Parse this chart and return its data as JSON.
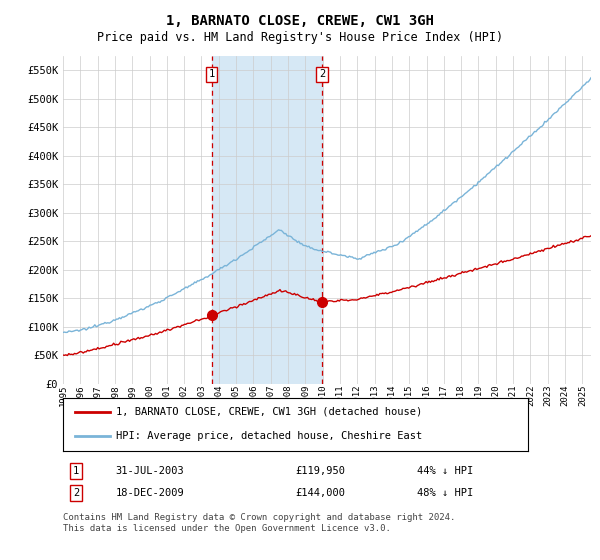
{
  "title": "1, BARNATO CLOSE, CREWE, CW1 3GH",
  "subtitle": "Price paid vs. HM Land Registry's House Price Index (HPI)",
  "ylim": [
    0,
    575000
  ],
  "yticks": [
    0,
    50000,
    100000,
    150000,
    200000,
    250000,
    300000,
    350000,
    400000,
    450000,
    500000,
    550000
  ],
  "ytick_labels": [
    "£0",
    "£50K",
    "£100K",
    "£150K",
    "£200K",
    "£250K",
    "£300K",
    "£350K",
    "£400K",
    "£450K",
    "£500K",
    "£550K"
  ],
  "hpi_color": "#7ab4d8",
  "price_color": "#cc0000",
  "sale1_date": 2003.58,
  "sale1_price": 119950,
  "sale1_label": "1",
  "sale1_text": "31-JUL-2003",
  "sale1_amount": "£119,950",
  "sale1_pct": "44% ↓ HPI",
  "sale2_date": 2009.97,
  "sale2_price": 144000,
  "sale2_label": "2",
  "sale2_text": "18-DEC-2009",
  "sale2_amount": "£144,000",
  "sale2_pct": "48% ↓ HPI",
  "legend_line1": "1, BARNATO CLOSE, CREWE, CW1 3GH (detached house)",
  "legend_line2": "HPI: Average price, detached house, Cheshire East",
  "footnote": "Contains HM Land Registry data © Crown copyright and database right 2024.\nThis data is licensed under the Open Government Licence v3.0.",
  "xmin": 1995.0,
  "xmax": 2025.5,
  "bgcolor": "#f0f4f8",
  "span_color": "#d6e8f5"
}
